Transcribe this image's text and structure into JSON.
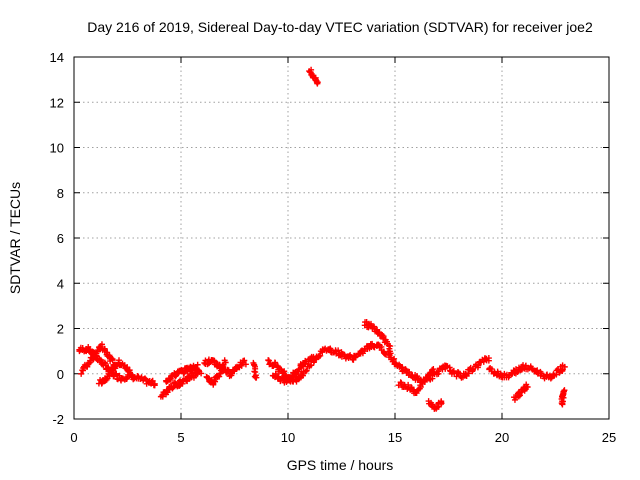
{
  "chart_data": {
    "type": "scatter",
    "title": "Day 216 of 2019, Sidereal Day-to-day VTEC variation (SDTVAR) for receiver joe2",
    "xlabel": "GPS time / hours",
    "ylabel": "SDTVAR / TECUs",
    "xlim": [
      0,
      25
    ],
    "ylim": [
      -2,
      14
    ],
    "xticks": [
      0,
      5,
      10,
      15,
      20,
      25
    ],
    "yticks": [
      -2,
      0,
      2,
      4,
      6,
      8,
      10,
      12,
      14
    ],
    "grid": true,
    "marker": "+",
    "color": "#ff0000",
    "series": [
      {
        "name": "SDTVAR",
        "segments": [
          {
            "x": [
              0.25,
              0.6,
              0.9,
              1.2,
              1.5,
              1.8,
              2.2,
              2.6,
              3.0,
              3.4,
              3.8
            ],
            "y": [
              1.05,
              1.1,
              0.9,
              0.6,
              0.3,
              0.0,
              -0.2,
              -0.1,
              -0.2,
              -0.35,
              -0.45
            ]
          },
          {
            "x": [
              0.35,
              0.7,
              1.0,
              1.3,
              1.6,
              1.9
            ],
            "y": [
              0.1,
              0.5,
              0.9,
              1.2,
              0.8,
              0.4
            ]
          },
          {
            "x": [
              1.2,
              1.5,
              1.8,
              2.1,
              2.4,
              2.7
            ],
            "y": [
              -0.4,
              -0.2,
              0.2,
              0.5,
              0.3,
              0.0
            ]
          },
          {
            "x": [
              4.1,
              4.4,
              4.7,
              5.0,
              5.3,
              5.6,
              5.9
            ],
            "y": [
              -1.0,
              -0.7,
              -0.5,
              -0.4,
              -0.2,
              -0.05,
              0.1
            ]
          },
          {
            "x": [
              4.3,
              4.6,
              4.9,
              5.2,
              5.5,
              5.8
            ],
            "y": [
              -0.3,
              -0.1,
              0.05,
              0.15,
              0.25,
              0.3
            ]
          },
          {
            "x": [
              6.1,
              6.4,
              6.7,
              7.0,
              7.3,
              7.6,
              8.0
            ],
            "y": [
              0.5,
              0.55,
              0.4,
              0.2,
              0.0,
              0.3,
              0.5
            ]
          },
          {
            "x": [
              6.2,
              6.5,
              6.8,
              7.1
            ],
            "y": [
              -0.2,
              -0.4,
              0.0,
              0.6
            ]
          },
          {
            "x": [
              8.4,
              8.5
            ],
            "y": [
              0.4,
              -0.2
            ]
          },
          {
            "x": [
              9.1,
              9.4,
              9.7,
              10.0,
              10.3,
              10.6,
              11.0,
              11.4,
              11.8,
              12.2,
              12.6,
              13.0,
              13.4,
              13.8,
              14.2,
              14.6,
              15.0
            ],
            "y": [
              0.5,
              0.4,
              0.1,
              -0.2,
              -0.3,
              -0.1,
              0.4,
              0.8,
              1.1,
              1.0,
              0.8,
              0.7,
              0.9,
              1.2,
              1.3,
              0.9,
              0.5
            ]
          },
          {
            "x": [
              9.3,
              9.6,
              9.9,
              10.2,
              10.5,
              10.8,
              11.2
            ],
            "y": [
              0.0,
              -0.2,
              -0.3,
              -0.1,
              0.2,
              0.5,
              0.8
            ]
          },
          {
            "x": [
              11.0,
              11.2,
              11.4
            ],
            "y": [
              13.4,
              13.1,
              12.9
            ]
          },
          {
            "x": [
              13.6,
              13.9,
              14.2,
              14.5,
              14.8
            ],
            "y": [
              2.2,
              2.1,
              1.9,
              1.6,
              1.0
            ]
          },
          {
            "x": [
              15.0,
              15.4,
              15.8,
              16.2,
              16.6,
              17.0,
              17.4,
              17.8,
              18.2,
              18.6,
              19.0,
              19.4
            ],
            "y": [
              0.4,
              0.2,
              -0.1,
              -0.3,
              -0.2,
              0.1,
              0.3,
              0.0,
              -0.1,
              0.2,
              0.5,
              0.7
            ]
          },
          {
            "x": [
              15.2,
              15.6,
              16.0,
              16.4,
              16.8
            ],
            "y": [
              -0.4,
              -0.6,
              -0.8,
              -0.3,
              0.2
            ]
          },
          {
            "x": [
              16.6,
              16.9,
              17.2
            ],
            "y": [
              -1.3,
              -1.5,
              -1.2
            ]
          },
          {
            "x": [
              19.4,
              19.8,
              20.2,
              20.6,
              21.0,
              21.4,
              21.8,
              22.2,
              22.6,
              22.9
            ],
            "y": [
              0.2,
              0.0,
              -0.1,
              0.1,
              0.3,
              0.2,
              0.0,
              -0.2,
              0.1,
              0.3
            ]
          },
          {
            "x": [
              20.6,
              20.9,
              21.2
            ],
            "y": [
              -1.1,
              -0.8,
              -0.5
            ]
          },
          {
            "x": [
              22.9,
              22.85,
              22.8
            ],
            "y": [
              -0.8,
              -1.0,
              -1.4
            ]
          }
        ]
      }
    ]
  }
}
